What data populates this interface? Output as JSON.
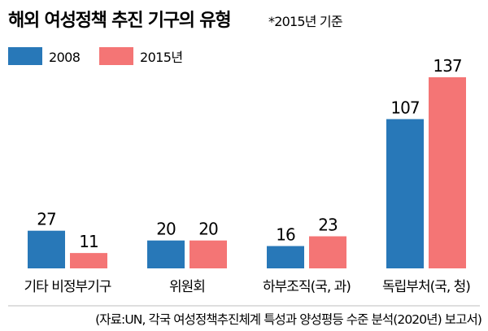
{
  "chart_data": {
    "type": "bar",
    "title": "해외 여성정책 추진 기구의 유형",
    "note": "*2015년 기준",
    "categories": [
      "기타 비정부기구",
      "위원회",
      "하부조직(국, 과)",
      "독립부처(국, 청)"
    ],
    "series": [
      {
        "name": "2008",
        "color": "#2878b8",
        "values": [
          27,
          20,
          16,
          107
        ]
      },
      {
        "name": "2015년",
        "color": "#f47575",
        "values": [
          11,
          20,
          23,
          137
        ]
      }
    ],
    "value_labels": [
      [
        "27",
        "20",
        "16",
        "107"
      ],
      [
        "11",
        "20",
        "23",
        "137"
      ]
    ],
    "ylim": [
      0,
      137
    ],
    "grid": false,
    "legend": "top-left",
    "source": "(자료:UN, 각국 여성정책추진체계 특성과 양성평등 수준 분석(2020년) 보고서)"
  }
}
